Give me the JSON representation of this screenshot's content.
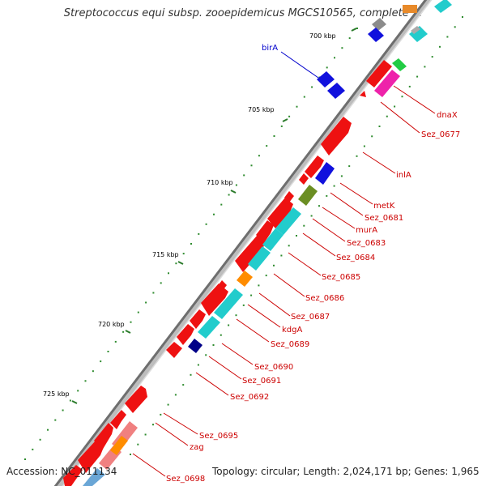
{
  "title": "Streptococcus equi subsp. zooepidemicus MGCS10565, complete ...",
  "footer": {
    "accession": "Accession: NC_011134",
    "topology": "Topology: circular; Length: 2,024,171 bp; Genes: 1,965"
  },
  "colors": {
    "backbone": "#808080",
    "tick": "#228B22",
    "label_red": "#cc0000",
    "label_blue": "#0000cc",
    "forward_gene": "#ee1111",
    "reverse_gene": "#1111dd"
  },
  "ticks": [
    {
      "label": "700 kbp"
    },
    {
      "label": "705 kbp"
    },
    {
      "label": "710 kbp"
    },
    {
      "label": "715 kbp"
    },
    {
      "label": "720 kbp"
    },
    {
      "label": "725 kbp"
    }
  ],
  "gene_labels": [
    {
      "name": "birA"
    },
    {
      "name": "dnaX"
    },
    {
      "name": "Sez_0677"
    },
    {
      "name": "inlA"
    },
    {
      "name": "metK"
    },
    {
      "name": "Sez_0681"
    },
    {
      "name": "murA"
    },
    {
      "name": "Sez_0683"
    },
    {
      "name": "Sez_0684"
    },
    {
      "name": "Sez_0685"
    },
    {
      "name": "Sez_0686"
    },
    {
      "name": "Sez_0687"
    },
    {
      "name": "kdgA"
    },
    {
      "name": "Sez_0689"
    },
    {
      "name": "Sez_0690"
    },
    {
      "name": "Sez_0691"
    },
    {
      "name": "Sez_0692"
    },
    {
      "name": "Sez_0695"
    },
    {
      "name": "zag"
    },
    {
      "name": "Sez_0698"
    }
  ]
}
